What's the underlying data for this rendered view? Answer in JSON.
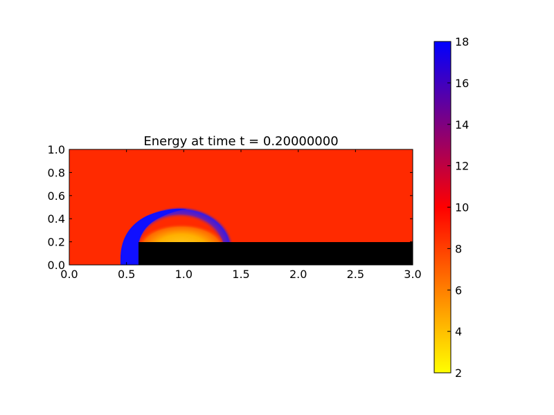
{
  "chart_data": {
    "type": "heatmap",
    "title": "Energy at time t =      0.20000000",
    "xlabel": "",
    "ylabel": "",
    "xlim": [
      0.0,
      3.0
    ],
    "ylim": [
      0.0,
      1.0
    ],
    "x_ticks": [
      "0.0",
      "0.5",
      "1.0",
      "1.5",
      "2.0",
      "2.5",
      "3.0"
    ],
    "y_ticks": [
      "0.0",
      "0.2",
      "0.4",
      "0.6",
      "0.8",
      "1.0"
    ],
    "x_tick_values": [
      0.0,
      0.5,
      1.0,
      1.5,
      2.0,
      2.5,
      3.0
    ],
    "y_tick_values": [
      0.0,
      0.2,
      0.4,
      0.6,
      0.8,
      1.0
    ],
    "background_value": 9,
    "obstacle": {
      "x": [
        0.6,
        3.0
      ],
      "y": [
        0.0,
        0.2
      ],
      "color": "#000000"
    },
    "features": [
      {
        "name": "shock-front",
        "shape": "arc",
        "center": [
          0.95,
          0.2
        ],
        "radius": 0.3,
        "value": 18
      },
      {
        "name": "expansion-region",
        "shape": "ellipse",
        "center": [
          0.95,
          0.3
        ],
        "radius": [
          0.3,
          0.14
        ],
        "value": 6
      }
    ],
    "colorbar": {
      "min": 2,
      "max": 18,
      "ticks": [
        "2",
        "4",
        "6",
        "8",
        "10",
        "12",
        "14",
        "16",
        "18"
      ],
      "tick_values": [
        2,
        4,
        6,
        8,
        10,
        12,
        14,
        16,
        18
      ],
      "colors": [
        "#ffff00",
        "#ff0000",
        "#0000ff"
      ]
    }
  }
}
